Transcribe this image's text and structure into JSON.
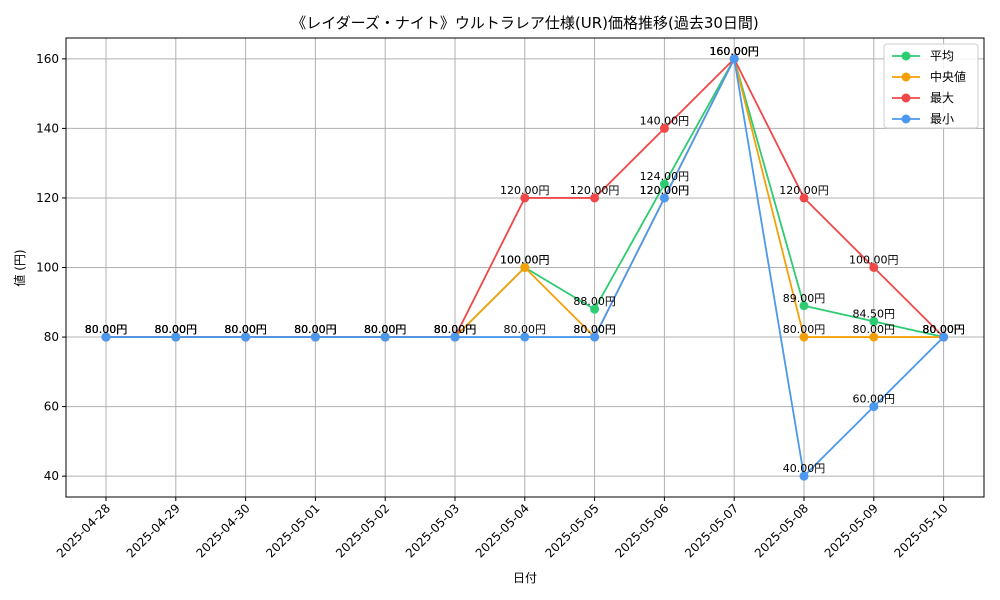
{
  "chart_data": {
    "type": "line",
    "title": "《レイダーズ・ナイト》ウルトラレア仕様(UR)価格推移(過去30日間)",
    "xlabel": "日付",
    "ylabel": "値 (円)",
    "ylim": [
      34,
      166
    ],
    "yticks": [
      40,
      60,
      80,
      100,
      120,
      140,
      160
    ],
    "grid": true,
    "legend_position": "top-right",
    "label_suffix": "円",
    "categories": [
      "2025-04-28",
      "2025-04-29",
      "2025-04-30",
      "2025-05-01",
      "2025-05-02",
      "2025-05-03",
      "2025-05-04",
      "2025-05-05",
      "2025-05-06",
      "2025-05-07",
      "2025-05-08",
      "2025-05-09",
      "2025-05-10"
    ],
    "series": [
      {
        "name": "平均",
        "color": "#2ecc71",
        "values": [
          80,
          80,
          80,
          80,
          80,
          80,
          100,
          88,
          124,
          160,
          89,
          84.5,
          80
        ]
      },
      {
        "name": "中央値",
        "color": "#f5a00a",
        "values": [
          80,
          80,
          80,
          80,
          80,
          80,
          100,
          80,
          120,
          160,
          80,
          80,
          80
        ]
      },
      {
        "name": "最大",
        "color": "#ef4848",
        "values": [
          80,
          80,
          80,
          80,
          80,
          80,
          120,
          120,
          140,
          160,
          120,
          100,
          80
        ]
      },
      {
        "name": "最小",
        "color": "#4b98ee",
        "values": [
          80,
          80,
          80,
          80,
          80,
          80,
          80,
          80,
          120,
          160,
          40,
          60,
          80
        ]
      }
    ]
  }
}
